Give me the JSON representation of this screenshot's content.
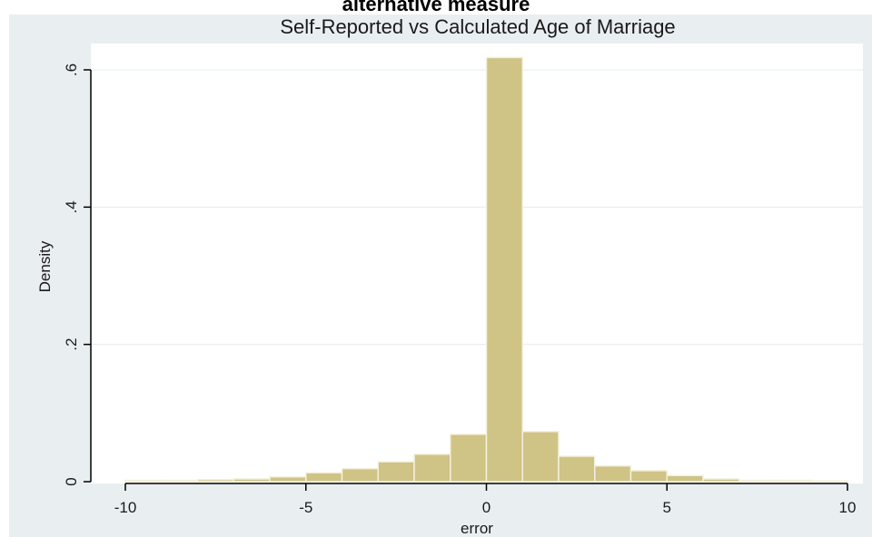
{
  "header": {
    "title": "alternative measure"
  },
  "chart_data": {
    "type": "bar",
    "title": "Self-Reported vs Calculated Age of Marriage",
    "xlabel": "error",
    "ylabel": "Density",
    "xlim": [
      -10.3,
      10.3
    ],
    "ylim": [
      0,
      0.64
    ],
    "x_ticks": [
      -10,
      -5,
      0,
      5,
      10
    ],
    "x_tick_labels": [
      "-10",
      "-5",
      "0",
      "5",
      "10"
    ],
    "y_ticks": [
      0,
      0.2,
      0.4,
      0.6
    ],
    "y_tick_labels": [
      "0",
      ".2",
      ".4",
      ".6"
    ],
    "grid": true,
    "bin_width": 1,
    "bins": [
      {
        "x0": -10,
        "x1": -9,
        "value": 0.002
      },
      {
        "x0": -9,
        "x1": -8,
        "value": 0.002
      },
      {
        "x0": -8,
        "x1": -7,
        "value": 0.003
      },
      {
        "x0": -7,
        "x1": -6,
        "value": 0.004
      },
      {
        "x0": -6,
        "x1": -5,
        "value": 0.007
      },
      {
        "x0": -5,
        "x1": -4,
        "value": 0.013
      },
      {
        "x0": -4,
        "x1": -3,
        "value": 0.019
      },
      {
        "x0": -3,
        "x1": -2,
        "value": 0.029
      },
      {
        "x0": -2,
        "x1": -1,
        "value": 0.04
      },
      {
        "x0": -1,
        "x1": 0,
        "value": 0.069
      },
      {
        "x0": 0,
        "x1": 1,
        "value": 0.618
      },
      {
        "x0": 1,
        "x1": 2,
        "value": 0.073
      },
      {
        "x0": 2,
        "x1": 3,
        "value": 0.037
      },
      {
        "x0": 3,
        "x1": 4,
        "value": 0.023
      },
      {
        "x0": 4,
        "x1": 5,
        "value": 0.016
      },
      {
        "x0": 5,
        "x1": 6,
        "value": 0.009
      },
      {
        "x0": 6,
        "x1": 7,
        "value": 0.004
      },
      {
        "x0": 7,
        "x1": 8,
        "value": 0.002
      },
      {
        "x0": 8,
        "x1": 9,
        "value": 0.002
      },
      {
        "x0": 9,
        "x1": 10,
        "value": 0.001
      }
    ],
    "colors": {
      "bar_fill": "#cfc386",
      "bar_stroke": "#f4f1dc",
      "background": "#e9eef1",
      "plot_bg": "#ffffff"
    }
  }
}
